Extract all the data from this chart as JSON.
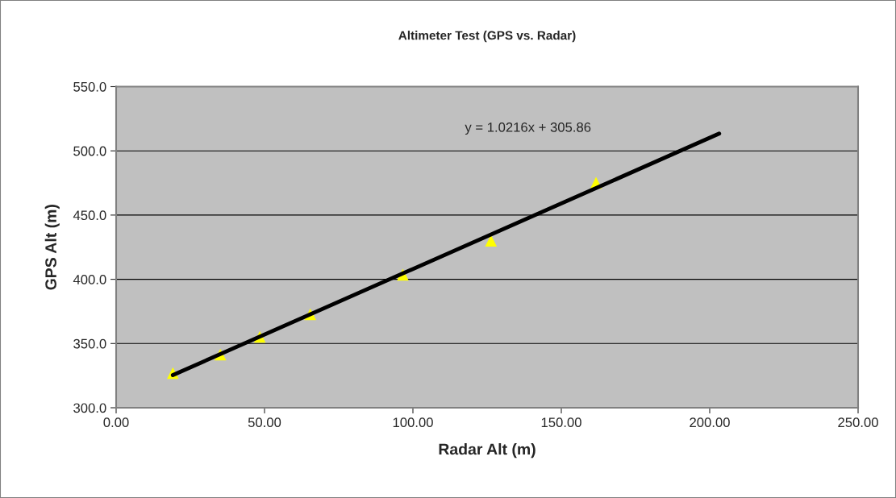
{
  "chart_data": {
    "type": "scatter",
    "title": "Altimeter Test (GPS vs. Radar)",
    "xlabel": "Radar Alt (m)",
    "ylabel": "GPS Alt (m)",
    "series": [
      {
        "color": "#ffff00",
        "marker": "triangle",
        "x": [
          19.1,
          35.1,
          48.4,
          65.4,
          96.6,
          126.3,
          161.7
        ],
        "values": [
          327.0,
          341.4,
          355.2,
          372.8,
          403.6,
          430.0,
          475.1
        ]
      },
      {
        "type": "line",
        "color": "#000000",
        "x": [
          19.1,
          203.2
        ],
        "values": [
          325.4,
          513.4
        ]
      }
    ],
    "xlim": [
      0,
      250
    ],
    "xticks": [
      {
        "value": 0,
        "label": "0.00"
      },
      {
        "value": 50,
        "label": "50.00"
      },
      {
        "value": 100,
        "label": "100.00"
      },
      {
        "value": 150,
        "label": "150.00"
      },
      {
        "value": 200,
        "label": "200.00"
      },
      {
        "value": 250,
        "label": "250.00"
      }
    ],
    "ylim": [
      300,
      550
    ],
    "yticks": [
      {
        "value": 300,
        "label": "300.0"
      },
      {
        "value": 350,
        "label": "350.0"
      },
      {
        "value": 400,
        "label": "400.0"
      },
      {
        "value": 450,
        "label": "450.0"
      },
      {
        "value": 500,
        "label": "500.0"
      },
      {
        "value": 550,
        "label": "550.0"
      }
    ],
    "grid": "y",
    "legend": false,
    "annotations": [
      "y = 1.0216x + 305.86"
    ]
  }
}
